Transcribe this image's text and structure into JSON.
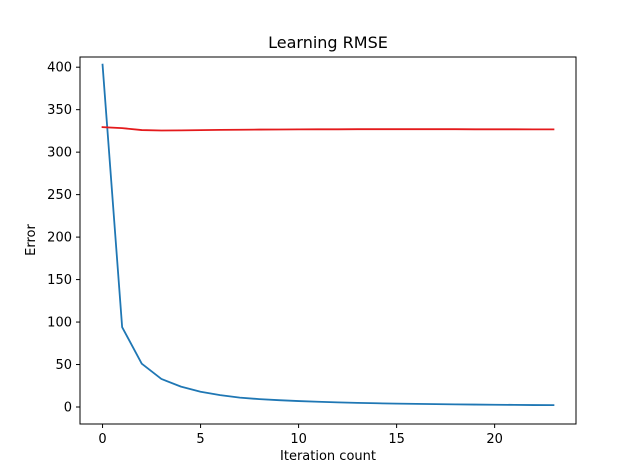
{
  "chart_data": {
    "type": "line",
    "title": "Learning RMSE",
    "xlabel": "Iteration count",
    "ylabel": "Error",
    "xlim": [
      -1.15,
      24.15
    ],
    "ylim": [
      -20,
      412
    ],
    "xticks": [
      0,
      5,
      10,
      15,
      20
    ],
    "yticks": [
      0,
      50,
      100,
      150,
      200,
      250,
      300,
      350,
      400
    ],
    "grid": false,
    "x": [
      0,
      1,
      2,
      3,
      4,
      5,
      6,
      7,
      8,
      9,
      10,
      11,
      12,
      13,
      14,
      15,
      16,
      17,
      18,
      19,
      20,
      21,
      22,
      23
    ],
    "series": [
      {
        "color": "#1f77b4",
        "values": [
          403,
          94,
          51,
          33,
          24,
          18,
          14,
          11,
          9.3,
          8.0,
          7.0,
          6.2,
          5.5,
          4.9,
          4.4,
          4.0,
          3.7,
          3.4,
          3.1,
          2.9,
          2.7,
          2.5,
          2.3,
          2.2
        ]
      },
      {
        "color": "#e41a1c",
        "values": [
          329.5,
          328.3,
          326.0,
          325.5,
          325.6,
          325.9,
          326.2,
          326.4,
          326.6,
          326.7,
          326.8,
          326.9,
          326.9,
          327.0,
          327.0,
          327.0,
          327.0,
          327.0,
          327.0,
          326.9,
          326.9,
          326.9,
          326.8,
          326.8
        ]
      }
    ]
  }
}
